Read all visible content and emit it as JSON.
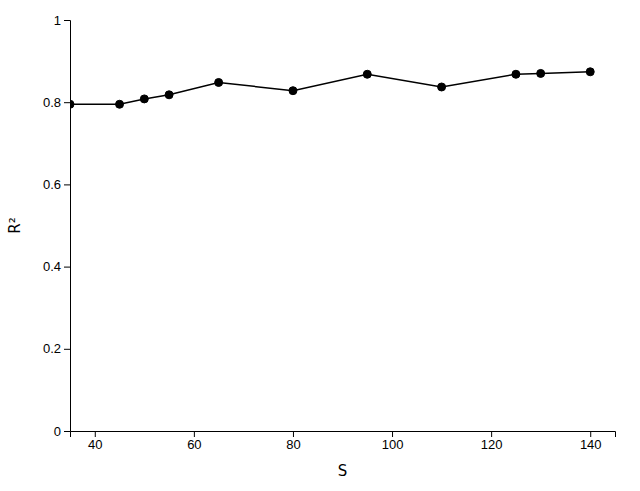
{
  "chart_data": {
    "type": "line",
    "xlabel": "S",
    "ylabel": "R²",
    "x": [
      35,
      45,
      50,
      55,
      65,
      80,
      95,
      110,
      125,
      130,
      140
    ],
    "values": [
      0.795,
      0.795,
      0.808,
      0.818,
      0.848,
      0.828,
      0.868,
      0.837,
      0.868,
      0.87,
      0.874
    ],
    "xlim": [
      35,
      145
    ],
    "ylim": [
      0,
      1.0
    ],
    "xticks": [
      40,
      60,
      80,
      100,
      120,
      140
    ],
    "yticks": [
      0,
      0.2,
      0.4,
      0.6,
      0.8,
      1
    ],
    "color": "#000000",
    "marker": "circle"
  }
}
